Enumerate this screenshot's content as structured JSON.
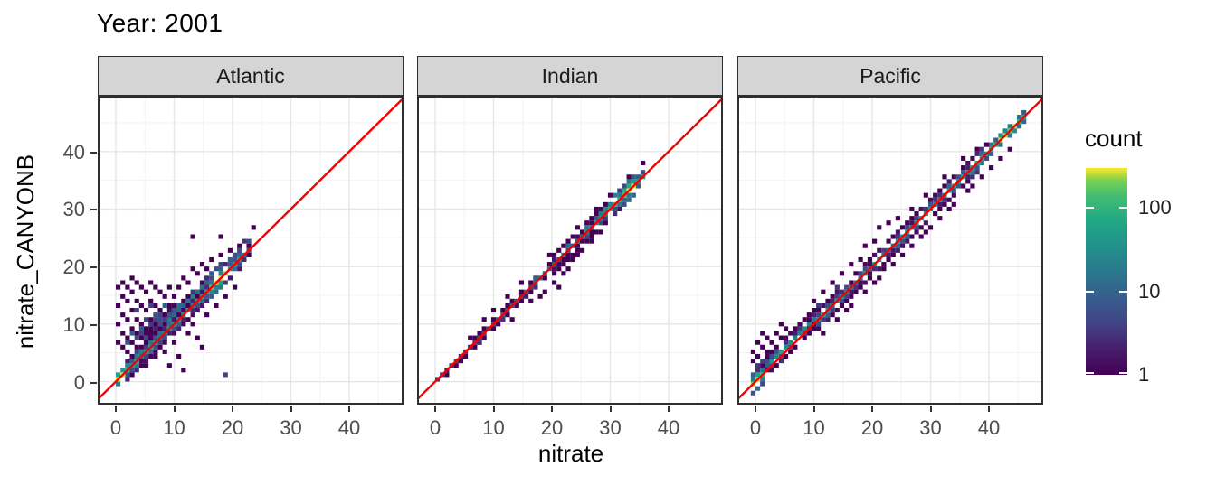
{
  "chart_data": {
    "type": "heatmap",
    "subtype": "bin2d-faceted-scatter",
    "title": "Year: 2001",
    "xlabel": "nitrate",
    "ylabel": "nitrate_CANYONB",
    "x_ticks": [
      0,
      10,
      20,
      30,
      40
    ],
    "y_ticks": [
      0,
      10,
      20,
      30,
      40
    ],
    "x_minor": [
      5,
      15,
      25,
      35,
      45
    ],
    "y_minor": [
      5,
      15,
      25,
      35,
      45
    ],
    "xlim": [
      -3.1,
      49.3
    ],
    "ylim": [
      -4.0,
      49.7
    ],
    "binwidth": 0.8,
    "grid": "on",
    "identity_line": {
      "slope": 1,
      "intercept": 0,
      "color": "#f40000"
    },
    "count_scale": {
      "min": 1,
      "max": 300,
      "transform": "log10"
    },
    "legend": {
      "title": "count",
      "position": "right",
      "tick_values": [
        100,
        10,
        1
      ],
      "tick_labels": [
        "100",
        "10",
        "1"
      ]
    },
    "colors": {
      "strip_bg": "#d5d5d5",
      "panel_border": "#2f2f2f",
      "grid_major": "#e6e6e6",
      "grid_minor": "#f3f3f3",
      "viridis_low": "#440154",
      "viridis_high": "#fde725",
      "tick_text": "#4d4d4d"
    },
    "facets": [
      {
        "label": "Atlantic",
        "diagonal_runs": [
          [
            0,
            1,
            260,
            1,
            0
          ],
          [
            2,
            4,
            70,
            2,
            0
          ],
          [
            5,
            8,
            30,
            2,
            0
          ],
          [
            9,
            12,
            24,
            2,
            0
          ],
          [
            13,
            15,
            40,
            2,
            0
          ],
          [
            16,
            19,
            60,
            2,
            0
          ],
          [
            20,
            23,
            230,
            2,
            0
          ],
          [
            24,
            26,
            40,
            2,
            0
          ],
          [
            27,
            28,
            9,
            1,
            0
          ],
          [
            11,
            19,
            10,
            1,
            2
          ],
          [
            6,
            12,
            5,
            1,
            3
          ],
          [
            3,
            9,
            3,
            0,
            5
          ]
        ],
        "bins": [
          [
            0,
            8
          ],
          [
            0,
            12
          ],
          [
            0,
            16
          ],
          [
            0,
            20
          ],
          [
            1,
            7
          ],
          [
            1,
            10
          ],
          [
            1,
            14
          ],
          [
            1,
            18
          ],
          [
            1,
            21
          ],
          [
            2,
            6
          ],
          [
            2,
            9
          ],
          [
            2,
            13
          ],
          [
            2,
            17
          ],
          [
            2,
            20
          ],
          [
            3,
            8
          ],
          [
            3,
            11
          ],
          [
            3,
            15
          ],
          [
            3,
            19
          ],
          [
            3,
            22
          ],
          [
            4,
            7
          ],
          [
            4,
            10
          ],
          [
            4,
            13
          ],
          [
            4,
            17
          ],
          [
            4,
            21
          ],
          [
            5,
            9
          ],
          [
            5,
            12
          ],
          [
            5,
            16
          ],
          [
            5,
            20
          ],
          [
            6,
            8
          ],
          [
            6,
            11
          ],
          [
            6,
            15
          ],
          [
            6,
            19
          ],
          [
            7,
            10
          ],
          [
            7,
            13
          ],
          [
            7,
            17
          ],
          [
            7,
            21
          ],
          [
            8,
            12
          ],
          [
            8,
            16
          ],
          [
            8,
            20
          ],
          [
            9,
            11
          ],
          [
            9,
            15
          ],
          [
            9,
            19
          ],
          [
            10,
            14
          ],
          [
            10,
            18
          ],
          [
            11,
            16
          ],
          [
            11,
            20
          ],
          [
            12,
            18
          ],
          [
            13,
            20
          ],
          [
            14,
            22
          ],
          [
            15,
            21
          ],
          [
            16,
            24
          ],
          [
            17,
            23
          ],
          [
            18,
            25
          ],
          [
            19,
            24
          ],
          [
            20,
            26
          ],
          [
            22,
            27
          ],
          [
            24,
            28
          ],
          [
            26,
            29
          ],
          [
            29,
            33
          ],
          [
            16,
            31
          ],
          [
            22,
            31
          ],
          [
            6,
            3
          ],
          [
            8,
            5
          ],
          [
            10,
            6
          ],
          [
            12,
            8
          ],
          [
            13,
            5
          ],
          [
            15,
            10
          ],
          [
            16,
            12
          ],
          [
            17,
            9
          ],
          [
            19,
            14
          ],
          [
            21,
            16
          ],
          [
            23,
            18
          ],
          [
            25,
            20
          ],
          [
            11,
            3
          ],
          [
            18,
            7
          ],
          [
            23,
            1,
            4
          ],
          [
            14,
            2
          ],
          [
            2,
            8,
            6
          ],
          [
            3,
            10,
            8
          ],
          [
            5,
            11,
            6
          ],
          [
            6,
            13,
            5
          ],
          [
            4,
            15,
            4
          ],
          [
            8,
            14,
            6
          ],
          [
            10,
            16,
            8
          ],
          [
            12,
            14,
            10
          ],
          [
            13,
            16,
            12
          ],
          [
            9,
            13,
            5
          ],
          [
            7,
            16,
            4
          ],
          [
            11,
            12,
            14
          ],
          [
            14,
            16,
            9
          ],
          [
            15,
            17,
            15
          ],
          [
            12,
            11,
            6
          ],
          [
            10,
            9,
            5
          ],
          [
            16,
            18,
            20
          ],
          [
            18,
            20,
            14
          ],
          [
            19,
            21,
            9
          ],
          [
            17,
            19,
            12
          ],
          [
            21,
            24,
            6
          ],
          [
            24,
            26,
            8
          ],
          [
            25,
            27,
            5
          ],
          [
            20,
            23,
            7
          ],
          [
            22,
            25,
            4
          ],
          [
            26,
            28,
            6
          ],
          [
            27,
            30,
            3
          ],
          [
            28,
            30,
            5
          ],
          [
            5,
            6,
            20
          ],
          [
            7,
            8,
            15
          ],
          [
            9,
            10,
            12
          ],
          [
            11,
            13,
            18
          ],
          [
            2,
            3,
            25
          ],
          [
            4,
            5,
            18
          ]
        ]
      },
      {
        "label": "Indian",
        "diagonal_runs": [
          [
            0,
            3,
            2,
            0,
            0
          ],
          [
            4,
            7,
            3,
            1,
            0
          ],
          [
            8,
            12,
            4,
            1,
            0
          ],
          [
            13,
            18,
            6,
            1,
            0
          ],
          [
            19,
            24,
            10,
            1,
            0
          ],
          [
            25,
            30,
            14,
            2,
            0
          ],
          [
            31,
            36,
            25,
            2,
            0
          ],
          [
            37,
            39,
            60,
            2,
            0
          ],
          [
            40,
            42,
            240,
            2,
            0
          ],
          [
            43,
            44,
            30,
            1,
            0
          ]
        ],
        "bins": [
          [
            22,
            18
          ],
          [
            23,
            19
          ],
          [
            27,
            23
          ],
          [
            28,
            24
          ],
          [
            29,
            26
          ],
          [
            20,
            17
          ],
          [
            16,
            13
          ],
          [
            25,
            21
          ],
          [
            31,
            28
          ],
          [
            33,
            30
          ],
          [
            35,
            32
          ],
          [
            26,
            20
          ],
          [
            30,
            27
          ],
          [
            10,
            13
          ],
          [
            15,
            18
          ],
          [
            24,
            27
          ],
          [
            30,
            33
          ],
          [
            34,
            37
          ],
          [
            37,
            40
          ],
          [
            44,
            47
          ],
          [
            41,
            44
          ],
          [
            18,
            21
          ],
          [
            7,
            9
          ],
          [
            12,
            15
          ],
          [
            35,
            36,
            18
          ],
          [
            38,
            40,
            20
          ],
          [
            28,
            29,
            12
          ],
          [
            21,
            22,
            8
          ],
          [
            32,
            33,
            15
          ],
          [
            40,
            41,
            80
          ],
          [
            36,
            37,
            30
          ],
          [
            42,
            43,
            40
          ],
          [
            2,
            1
          ],
          [
            5,
            4
          ],
          [
            9,
            8,
            3
          ],
          [
            14,
            13,
            3
          ]
        ]
      },
      {
        "label": "Pacific",
        "diagonal_runs": [
          [
            -1,
            1,
            240,
            2,
            0
          ],
          [
            2,
            6,
            35,
            2,
            1
          ],
          [
            7,
            12,
            22,
            2,
            1
          ],
          [
            13,
            20,
            30,
            2,
            0
          ],
          [
            21,
            30,
            26,
            2,
            0
          ],
          [
            31,
            40,
            32,
            2,
            0
          ],
          [
            41,
            49,
            48,
            2,
            0
          ],
          [
            50,
            51,
            80,
            1,
            0
          ],
          [
            52,
            55,
            170,
            1,
            0
          ],
          [
            56,
            57,
            70,
            1,
            0
          ]
        ],
        "bins": [
          [
            -1,
            4
          ],
          [
            -1,
            6
          ],
          [
            0,
            5
          ],
          [
            0,
            8
          ],
          [
            1,
            7
          ],
          [
            1,
            10
          ],
          [
            2,
            9
          ],
          [
            0,
            3,
            3
          ],
          [
            1,
            4,
            4
          ],
          [
            2,
            6
          ],
          [
            3,
            8
          ],
          [
            4,
            10
          ],
          [
            3,
            5,
            5
          ],
          [
            5,
            9
          ],
          [
            6,
            11
          ],
          [
            5,
            12
          ],
          [
            2,
            3,
            8
          ],
          [
            4,
            6,
            6
          ],
          [
            12,
            17
          ],
          [
            14,
            19
          ],
          [
            16,
            21
          ],
          [
            18,
            23
          ],
          [
            20,
            25
          ],
          [
            26,
            33
          ],
          [
            23,
            29
          ],
          [
            28,
            34
          ],
          [
            13,
            16,
            3
          ],
          [
            17,
            20,
            3
          ],
          [
            22,
            26
          ],
          [
            25,
            30
          ],
          [
            30,
            35
          ],
          [
            33,
            37
          ],
          [
            36,
            40
          ],
          [
            40,
            44
          ],
          [
            44,
            48
          ],
          [
            47,
            50
          ],
          [
            14,
            10
          ],
          [
            17,
            13
          ],
          [
            20,
            16
          ],
          [
            23,
            19
          ],
          [
            26,
            22
          ],
          [
            29,
            25
          ],
          [
            31,
            27
          ],
          [
            33,
            29
          ],
          [
            35,
            31
          ],
          [
            25,
            21
          ],
          [
            37,
            33
          ],
          [
            39,
            35
          ],
          [
            42,
            38
          ],
          [
            45,
            41
          ],
          [
            48,
            44
          ],
          [
            50,
            46
          ],
          [
            19,
            15
          ],
          [
            27,
            24
          ],
          [
            36,
            32
          ],
          [
            41,
            37
          ],
          [
            46,
            42
          ],
          [
            52,
            48
          ],
          [
            54,
            50
          ]
        ]
      }
    ]
  }
}
